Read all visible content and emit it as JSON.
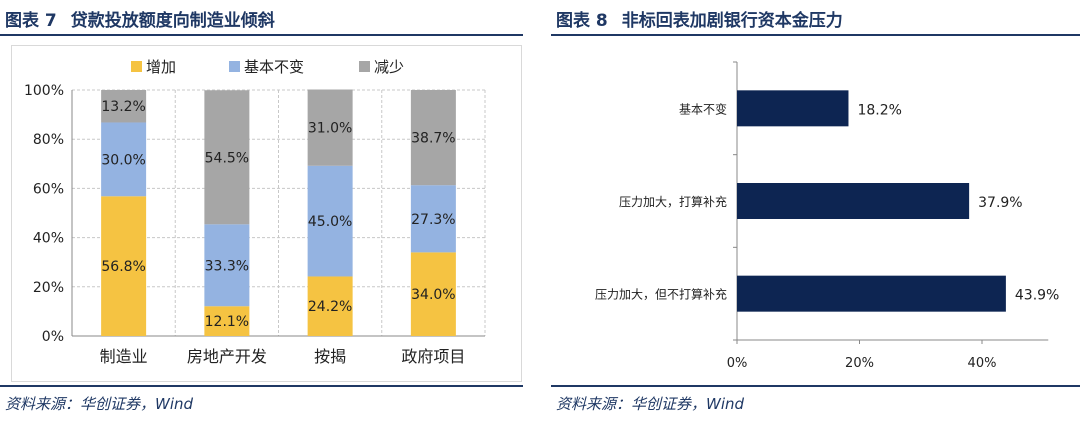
{
  "left_figure": {
    "number": "图表 7",
    "title": "贷款投放额度向制造业倾斜",
    "source": "资料来源：华创证券，Wind"
  },
  "right_figure": {
    "number": "图表 8",
    "title": "非标回表加剧银行资本金压力",
    "source": "资料来源：华创证券，Wind"
  },
  "chart_data": [
    {
      "type": "bar",
      "stacked": true,
      "percent": true,
      "categories": [
        "制造业",
        "房地产开发",
        "按揭",
        "政府项目"
      ],
      "series": [
        {
          "name": "增加",
          "color": "#f5c342",
          "values": [
            56.8,
            12.1,
            24.2,
            34.0
          ],
          "labels": [
            "56.8%",
            "12.1%",
            "24.2%",
            "34.0%"
          ]
        },
        {
          "name": "基本不变",
          "color": "#94b3e1",
          "values": [
            30.0,
            33.3,
            45.0,
            27.3
          ],
          "labels": [
            "30.0%",
            "33.3%",
            "45.0%",
            "27.3%"
          ]
        },
        {
          "name": "减少",
          "color": "#a6a6a6",
          "values": [
            13.2,
            54.5,
            31.0,
            38.7
          ],
          "labels": [
            "13.2%",
            "54.5%",
            "31.0%",
            "38.7%"
          ]
        }
      ],
      "ylim": [
        0,
        100
      ],
      "yticks": [
        "0%",
        "20%",
        "40%",
        "60%",
        "80%",
        "100%"
      ],
      "grid": true,
      "legend": "top"
    },
    {
      "type": "bar",
      "orientation": "horizontal",
      "categories": [
        "基本不变",
        "压力加大，打算补充",
        "压力加大，但不打算补充"
      ],
      "values": [
        18.2,
        37.9,
        43.9
      ],
      "labels": [
        "18.2%",
        "37.9%",
        "43.9%"
      ],
      "color": "#0d2552",
      "xlim": [
        0,
        50
      ],
      "xticks": [
        "0%",
        "20%",
        "40%"
      ],
      "grid": false
    }
  ]
}
